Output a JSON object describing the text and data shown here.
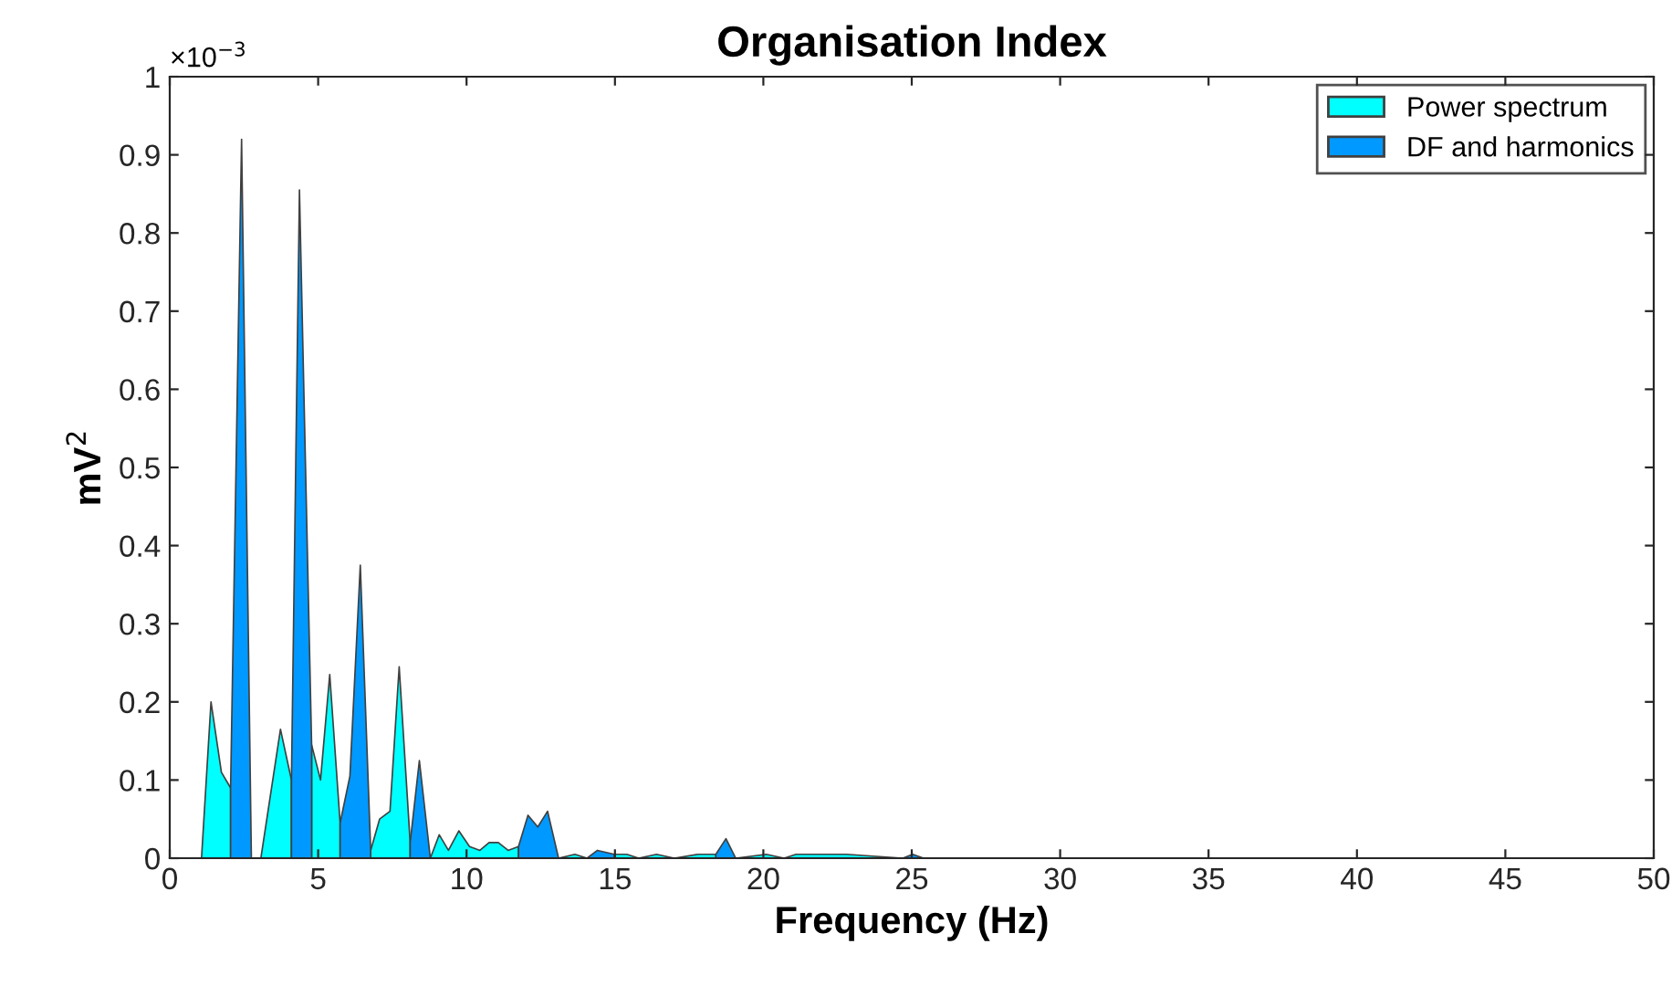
{
  "chart_data": {
    "type": "area",
    "title": "Organisation Index",
    "xlabel": "Frequency (Hz)",
    "ylabel": "mV$^{2}$",
    "x": [
      1.07,
      1.39,
      1.74,
      2.05,
      2.42,
      2.75,
      3.07,
      3.73,
      4.1,
      4.37,
      4.78,
      5.08,
      5.39,
      5.74,
      6.07,
      6.42,
      6.77,
      7.07,
      7.42,
      7.73,
      8.1,
      8.41,
      8.78,
      9.08,
      9.39,
      9.74,
      10.1,
      10.45,
      10.76,
      11.07,
      11.4,
      11.75,
      12.07,
      12.4,
      12.73,
      13.1,
      13.65,
      14.06,
      14.41,
      14.98,
      15.4,
      15.8,
      16.4,
      17.0,
      17.8,
      18.4,
      18.74,
      19.07,
      20.1,
      20.7,
      21.1,
      21.75,
      22.8,
      24.7,
      25.03,
      25.4
    ],
    "series": [
      {
        "name": "Power spectrum",
        "color": "#00ffff",
        "values": [
          0,
          0.2,
          0.11,
          0.09,
          null,
          0,
          0,
          0.165,
          0.1,
          null,
          0.145,
          0.1,
          0.235,
          0.045,
          null,
          null,
          0.01,
          0.05,
          0.06,
          0.245,
          0.02,
          null,
          0,
          0.03,
          0.01,
          0.035,
          0.015,
          0.01,
          0.02,
          0.02,
          0.01,
          0.015,
          null,
          null,
          null,
          0,
          0.005,
          0,
          null,
          0.005,
          0.005,
          0,
          0.005,
          0,
          0.005,
          0.005,
          null,
          0,
          0.005,
          0,
          0.005,
          0.005,
          0.005,
          0,
          null,
          null
        ]
      },
      {
        "name": "DF and harmonics",
        "color": "#0099ff",
        "values": [
          null,
          null,
          null,
          0.09,
          0.92,
          0,
          null,
          null,
          0.1,
          0.855,
          0.145,
          null,
          null,
          0.045,
          0.105,
          0.375,
          0.01,
          null,
          null,
          null,
          0.02,
          0.125,
          0,
          null,
          null,
          null,
          null,
          null,
          null,
          null,
          null,
          0.015,
          0.055,
          0.04,
          0.06,
          0,
          null,
          0,
          0.01,
          0.005,
          null,
          null,
          null,
          null,
          null,
          0.005,
          0.025,
          0,
          null,
          null,
          null,
          null,
          null,
          0,
          0.005,
          0
        ]
      }
    ],
    "xlim": [
      0,
      50
    ],
    "xticks": [
      0,
      5,
      10,
      15,
      20,
      25,
      30,
      35,
      40,
      45,
      50
    ],
    "ylim": [
      0,
      1
    ],
    "yticks": [
      0,
      0.1,
      0.2,
      0.3,
      0.4,
      0.5,
      0.6,
      0.7,
      0.8,
      0.9,
      1
    ],
    "annotations": [
      "×10$^{−3}$"
    ],
    "legend": "top right",
    "grid": false
  }
}
